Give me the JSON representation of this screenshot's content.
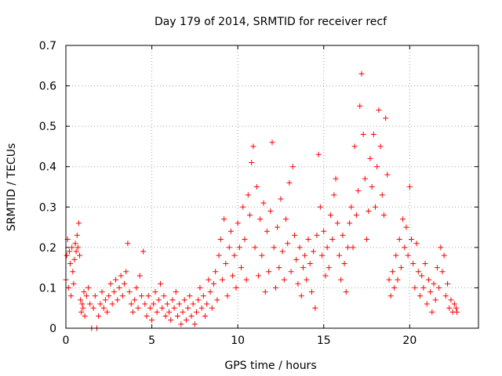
{
  "chart_data": {
    "type": "scatter",
    "title": "Day 179 of 2014, SRMTID for receiver recf",
    "xlabel": "GPS time / hours",
    "ylabel": "SRMTID / TECUs",
    "xlim": [
      0,
      24
    ],
    "ylim": [
      0,
      0.7
    ],
    "xticks": [
      "0",
      "5",
      "10",
      "15",
      "20"
    ],
    "xtick_values": [
      0,
      5,
      10,
      15,
      20
    ],
    "yticks": [
      "0",
      "0.1",
      "0.2",
      "0.3",
      "0.4",
      "0.5",
      "0.6",
      "0.7"
    ],
    "ytick_values": [
      0,
      0.1,
      0.2,
      0.3,
      0.4,
      0.5,
      0.6,
      0.7
    ],
    "grid": true,
    "marker": "+",
    "color": "#ff0000",
    "series": [
      {
        "name": "SRMTID",
        "points": [
          [
            0.0,
            0.12
          ],
          [
            0.05,
            0.18
          ],
          [
            0.1,
            0.22
          ],
          [
            0.15,
            0.1
          ],
          [
            0.2,
            0.19
          ],
          [
            0.25,
            0.16
          ],
          [
            0.3,
            0.08
          ],
          [
            0.35,
            0.2
          ],
          [
            0.4,
            0.14
          ],
          [
            0.45,
            0.11
          ],
          [
            0.5,
            0.17
          ],
          [
            0.55,
            0.21
          ],
          [
            0.6,
            0.19
          ],
          [
            0.65,
            0.23
          ],
          [
            0.7,
            0.2
          ],
          [
            0.75,
            0.26
          ],
          [
            0.8,
            0.18
          ],
          [
            0.85,
            0.07
          ],
          [
            0.9,
            0.04
          ],
          [
            0.95,
            0.06
          ],
          [
            1.0,
            0.05
          ],
          [
            1.05,
            0.09
          ],
          [
            1.1,
            0.03
          ],
          [
            1.2,
            0.08
          ],
          [
            1.3,
            0.1
          ],
          [
            1.4,
            0.06
          ],
          [
            1.5,
            0.0
          ],
          [
            1.6,
            0.05
          ],
          [
            1.7,
            0.08
          ],
          [
            1.8,
            0.0
          ],
          [
            1.9,
            0.03
          ],
          [
            2.0,
            0.06
          ],
          [
            2.1,
            0.09
          ],
          [
            2.2,
            0.05
          ],
          [
            2.3,
            0.07
          ],
          [
            2.4,
            0.04
          ],
          [
            2.5,
            0.08
          ],
          [
            2.6,
            0.11
          ],
          [
            2.7,
            0.06
          ],
          [
            2.8,
            0.09
          ],
          [
            2.9,
            0.12
          ],
          [
            3.0,
            0.07
          ],
          [
            3.1,
            0.1
          ],
          [
            3.2,
            0.13
          ],
          [
            3.3,
            0.08
          ],
          [
            3.4,
            0.11
          ],
          [
            3.5,
            0.14
          ],
          [
            3.6,
            0.21
          ],
          [
            3.7,
            0.09
          ],
          [
            3.8,
            0.06
          ],
          [
            3.9,
            0.04
          ],
          [
            4.0,
            0.07
          ],
          [
            4.1,
            0.1
          ],
          [
            4.2,
            0.05
          ],
          [
            4.3,
            0.13
          ],
          [
            4.4,
            0.08
          ],
          [
            4.5,
            0.19
          ],
          [
            4.6,
            0.06
          ],
          [
            4.7,
            0.03
          ],
          [
            4.8,
            0.08
          ],
          [
            4.9,
            0.05
          ],
          [
            5.0,
            0.02
          ],
          [
            5.1,
            0.06
          ],
          [
            5.2,
            0.09
          ],
          [
            5.3,
            0.04
          ],
          [
            5.4,
            0.07
          ],
          [
            5.5,
            0.11
          ],
          [
            5.6,
            0.05
          ],
          [
            5.7,
            0.08
          ],
          [
            5.8,
            0.03
          ],
          [
            5.9,
            0.06
          ],
          [
            6.0,
            0.04
          ],
          [
            6.1,
            0.02
          ],
          [
            6.2,
            0.07
          ],
          [
            6.3,
            0.05
          ],
          [
            6.4,
            0.09
          ],
          [
            6.5,
            0.03
          ],
          [
            6.6,
            0.06
          ],
          [
            6.7,
            0.01
          ],
          [
            6.8,
            0.04
          ],
          [
            6.9,
            0.07
          ],
          [
            7.0,
            0.02
          ],
          [
            7.1,
            0.05
          ],
          [
            7.2,
            0.08
          ],
          [
            7.3,
            0.03
          ],
          [
            7.4,
            0.06
          ],
          [
            7.5,
            0.01
          ],
          [
            7.6,
            0.04
          ],
          [
            7.7,
            0.07
          ],
          [
            7.8,
            0.1
          ],
          [
            7.9,
            0.05
          ],
          [
            8.0,
            0.08
          ],
          [
            8.1,
            0.03
          ],
          [
            8.2,
            0.06
          ],
          [
            8.3,
            0.12
          ],
          [
            8.4,
            0.09
          ],
          [
            8.5,
            0.05
          ],
          [
            8.6,
            0.11
          ],
          [
            8.7,
            0.14
          ],
          [
            8.8,
            0.07
          ],
          [
            8.9,
            0.18
          ],
          [
            9.0,
            0.22
          ],
          [
            9.1,
            0.12
          ],
          [
            9.2,
            0.27
          ],
          [
            9.3,
            0.16
          ],
          [
            9.4,
            0.08
          ],
          [
            9.5,
            0.2
          ],
          [
            9.6,
            0.24
          ],
          [
            9.7,
            0.13
          ],
          [
            9.8,
            0.18
          ],
          [
            9.9,
            0.1
          ],
          [
            10.0,
            0.26
          ],
          [
            10.1,
            0.2
          ],
          [
            10.2,
            0.15
          ],
          [
            10.3,
            0.3
          ],
          [
            10.4,
            0.22
          ],
          [
            10.5,
            0.12
          ],
          [
            10.6,
            0.33
          ],
          [
            10.7,
            0.28
          ],
          [
            10.8,
            0.41
          ],
          [
            10.9,
            0.45
          ],
          [
            11.0,
            0.2
          ],
          [
            11.1,
            0.35
          ],
          [
            11.2,
            0.13
          ],
          [
            11.3,
            0.27
          ],
          [
            11.4,
            0.18
          ],
          [
            11.5,
            0.31
          ],
          [
            11.6,
            0.09
          ],
          [
            11.7,
            0.24
          ],
          [
            11.8,
            0.14
          ],
          [
            11.9,
            0.29
          ],
          [
            12.0,
            0.46
          ],
          [
            12.1,
            0.2
          ],
          [
            12.2,
            0.1
          ],
          [
            12.3,
            0.25
          ],
          [
            12.4,
            0.15
          ],
          [
            12.5,
            0.32
          ],
          [
            12.6,
            0.19
          ],
          [
            12.7,
            0.12
          ],
          [
            12.8,
            0.27
          ],
          [
            12.9,
            0.21
          ],
          [
            13.0,
            0.36
          ],
          [
            13.1,
            0.14
          ],
          [
            13.2,
            0.4
          ],
          [
            13.3,
            0.23
          ],
          [
            13.4,
            0.17
          ],
          [
            13.5,
            0.11
          ],
          [
            13.6,
            0.2
          ],
          [
            13.7,
            0.08
          ],
          [
            13.8,
            0.15
          ],
          [
            13.9,
            0.18
          ],
          [
            14.0,
            0.12
          ],
          [
            14.1,
            0.22
          ],
          [
            14.2,
            0.16
          ],
          [
            14.3,
            0.09
          ],
          [
            14.4,
            0.19
          ],
          [
            14.5,
            0.05
          ],
          [
            14.6,
            0.23
          ],
          [
            14.7,
            0.43
          ],
          [
            14.8,
            0.3
          ],
          [
            14.9,
            0.18
          ],
          [
            15.0,
            0.24
          ],
          [
            15.1,
            0.13
          ],
          [
            15.2,
            0.2
          ],
          [
            15.3,
            0.15
          ],
          [
            15.4,
            0.28
          ],
          [
            15.5,
            0.22
          ],
          [
            15.6,
            0.33
          ],
          [
            15.7,
            0.37
          ],
          [
            15.8,
            0.26
          ],
          [
            15.9,
            0.18
          ],
          [
            16.0,
            0.12
          ],
          [
            16.1,
            0.23
          ],
          [
            16.2,
            0.16
          ],
          [
            16.3,
            0.09
          ],
          [
            16.4,
            0.2
          ],
          [
            16.5,
            0.26
          ],
          [
            16.6,
            0.3
          ],
          [
            16.7,
            0.2
          ],
          [
            16.8,
            0.45
          ],
          [
            16.9,
            0.28
          ],
          [
            17.0,
            0.34
          ],
          [
            17.1,
            0.55
          ],
          [
            17.2,
            0.63
          ],
          [
            17.3,
            0.48
          ],
          [
            17.4,
            0.37
          ],
          [
            17.5,
            0.22
          ],
          [
            17.6,
            0.29
          ],
          [
            17.7,
            0.42
          ],
          [
            17.8,
            0.35
          ],
          [
            17.9,
            0.48
          ],
          [
            18.0,
            0.3
          ],
          [
            18.1,
            0.4
          ],
          [
            18.2,
            0.54
          ],
          [
            18.3,
            0.45
          ],
          [
            18.4,
            0.33
          ],
          [
            18.5,
            0.28
          ],
          [
            18.6,
            0.52
          ],
          [
            18.7,
            0.38
          ],
          [
            18.8,
            0.12
          ],
          [
            18.9,
            0.08
          ],
          [
            19.0,
            0.14
          ],
          [
            19.1,
            0.1
          ],
          [
            19.2,
            0.18
          ],
          [
            19.3,
            0.12
          ],
          [
            19.4,
            0.22
          ],
          [
            19.5,
            0.15
          ],
          [
            19.6,
            0.27
          ],
          [
            19.7,
            0.2
          ],
          [
            19.8,
            0.25
          ],
          [
            19.9,
            0.18
          ],
          [
            20.0,
            0.35
          ],
          [
            20.1,
            0.22
          ],
          [
            20.2,
            0.16
          ],
          [
            20.3,
            0.1
          ],
          [
            20.4,
            0.21
          ],
          [
            20.5,
            0.14
          ],
          [
            20.6,
            0.08
          ],
          [
            20.7,
            0.13
          ],
          [
            20.8,
            0.1
          ],
          [
            20.9,
            0.16
          ],
          [
            21.0,
            0.06
          ],
          [
            21.1,
            0.12
          ],
          [
            21.2,
            0.09
          ],
          [
            21.3,
            0.04
          ],
          [
            21.4,
            0.11
          ],
          [
            21.5,
            0.07
          ],
          [
            21.6,
            0.15
          ],
          [
            21.7,
            0.1
          ],
          [
            21.8,
            0.2
          ],
          [
            21.9,
            0.14
          ],
          [
            22.0,
            0.18
          ],
          [
            22.1,
            0.08
          ],
          [
            22.2,
            0.11
          ],
          [
            22.3,
            0.05
          ],
          [
            22.4,
            0.07
          ],
          [
            22.5,
            0.04
          ],
          [
            22.6,
            0.06
          ],
          [
            22.7,
            0.05
          ],
          [
            22.75,
            0.04
          ]
        ]
      }
    ]
  }
}
